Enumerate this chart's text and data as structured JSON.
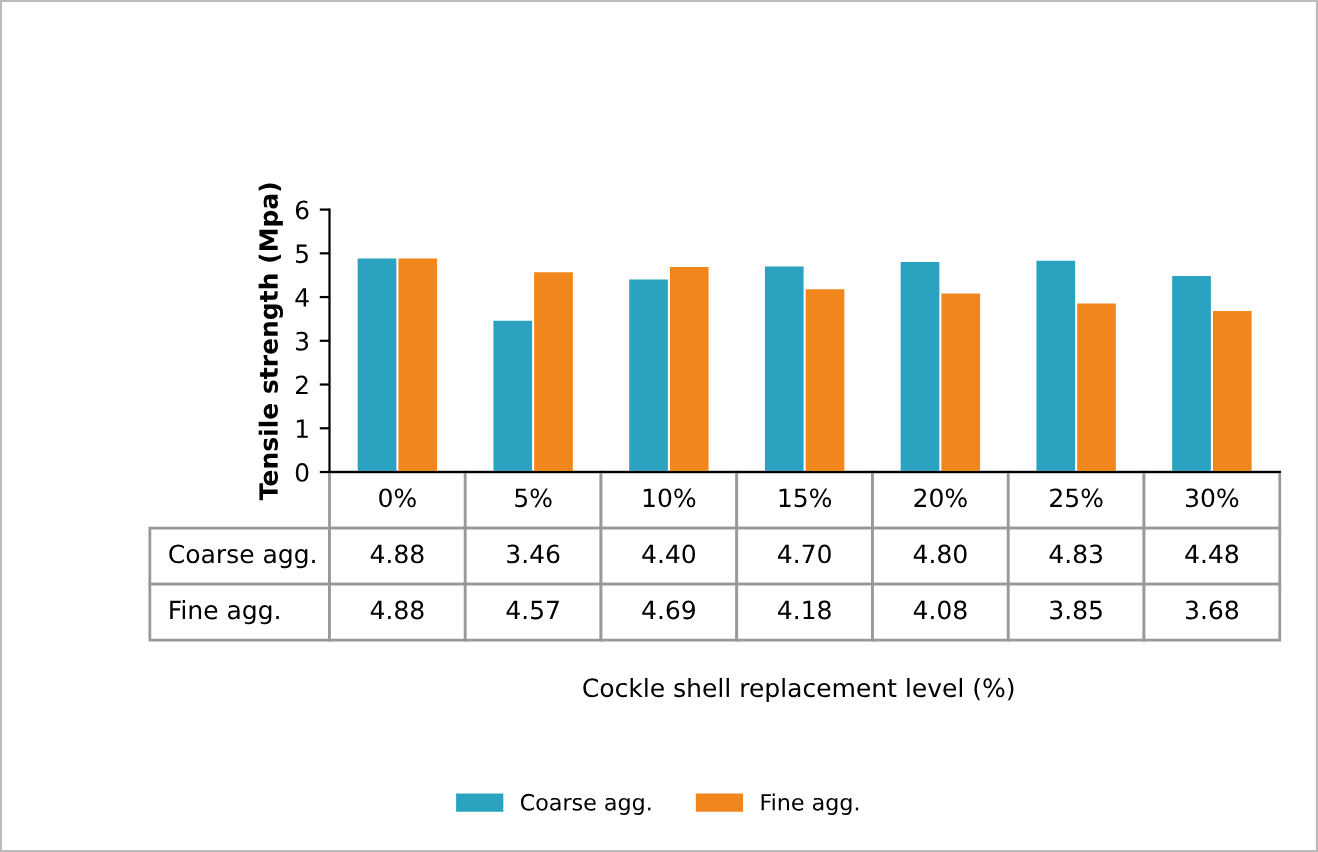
{
  "chart_data": {
    "type": "bar",
    "ylabel": "Tensile strength (Mpa)",
    "annotations": [
      "Cockle shell replacement level (%)"
    ],
    "categories": [
      "0%",
      "5%",
      "10%",
      "15%",
      "20%",
      "25%",
      "30%"
    ],
    "series": [
      {
        "name": "Coarse agg.",
        "color": "#2ba3c0",
        "values": [
          4.88,
          3.46,
          4.4,
          4.7,
          4.8,
          4.83,
          4.48
        ],
        "value_labels": [
          "4.88",
          "3.46",
          "4.40",
          "4.70",
          "4.80",
          "4.83",
          "4.48"
        ]
      },
      {
        "name": "Fine agg.",
        "color": "#f0861c",
        "values": [
          4.88,
          4.57,
          4.69,
          4.18,
          4.08,
          3.85,
          3.68
        ],
        "value_labels": [
          "4.88",
          "4.57",
          "4.69",
          "4.18",
          "4.08",
          "3.85",
          "3.68"
        ]
      }
    ],
    "ylim": [
      0,
      6
    ],
    "yticks": [
      0,
      1,
      2,
      3,
      4,
      5,
      6
    ],
    "grid": false,
    "legend": "bottom"
  }
}
